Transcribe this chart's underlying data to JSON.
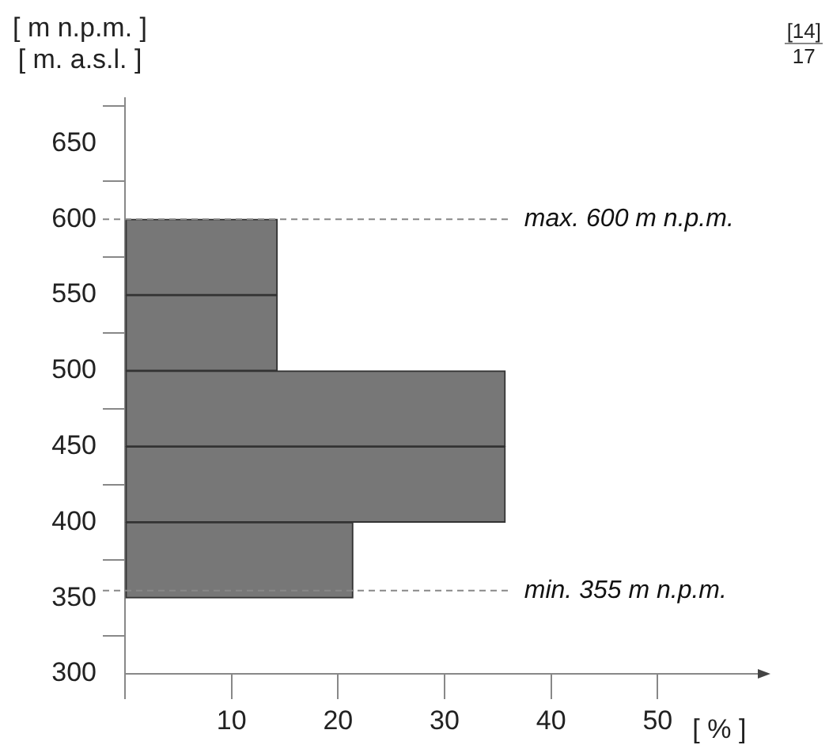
{
  "chart_data": {
    "type": "histogram",
    "orientation": "horizontal",
    "ylabel": "[ m n.p.m. ]\n[ m. a.s.l. ]",
    "xlabel": "[ % ]",
    "annotations": [
      "[14]",
      "17"
    ],
    "bins": [
      350,
      400,
      450,
      500,
      550,
      600
    ],
    "values": [
      21.4,
      35.7,
      35.7,
      14.3,
      14.3
    ],
    "color": "#777777",
    "xlim": [
      0,
      60
    ],
    "xticks": [
      {
        "value": 0,
        "label": null
      },
      10,
      20,
      30,
      40,
      50
    ],
    "ylim": [
      300,
      680
    ],
    "yticks": [
      300,
      350,
      400,
      450,
      500,
      550,
      600,
      650
    ],
    "ref_lines": [
      {
        "axis": "y",
        "value": 600,
        "label": "max. 600 m n.p.m.",
        "color": "#888888",
        "line_style": "dashed"
      },
      {
        "axis": "y",
        "value": 355,
        "label": "min. 355 m n.p.m.",
        "color": "#888888",
        "line_style": "dashed"
      }
    ],
    "grid": false,
    "legend": false
  }
}
